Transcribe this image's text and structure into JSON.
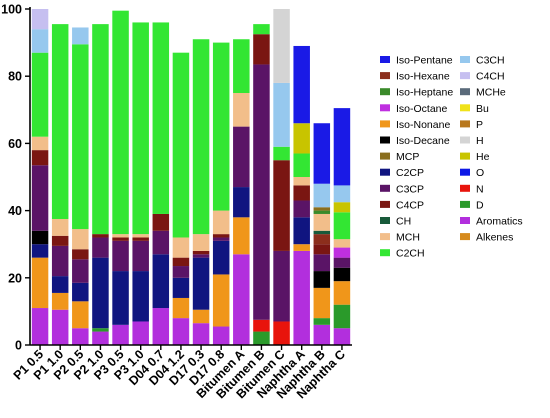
{
  "chart_data": {
    "type": "bar",
    "stacked": true,
    "ylim": [
      0,
      100
    ],
    "yticks": [
      0,
      20,
      40,
      60,
      80,
      100
    ],
    "categories": [
      "P1 0.5",
      "P1 1.0",
      "P2 0.5",
      "P2 1.0",
      "P3 0.5",
      "P3 1.0",
      "D04 0.7",
      "D04 1.2",
      "D17 0.3",
      "D17 0.8",
      "Bitumen A",
      "Bitumen B",
      "Bitumen C",
      "Naphtha A",
      "Naphtha B",
      "Naphtha C"
    ],
    "legend_position": "right",
    "series": [
      {
        "name": "Aromatics",
        "color": "#b22fdd",
        "values": [
          11,
          10.5,
          5,
          4,
          6,
          7,
          11,
          8,
          6.5,
          5.5,
          27,
          0,
          0,
          28,
          6,
          5
        ]
      },
      {
        "name": "D",
        "color": "#2a9a2a",
        "values": [
          0,
          0,
          0,
          1,
          0,
          0,
          0,
          0,
          0,
          0,
          0,
          4,
          0,
          0,
          2,
          7
        ]
      },
      {
        "name": "N",
        "color": "#e8140c",
        "values": [
          0,
          0,
          0,
          0,
          0,
          0,
          0,
          0,
          0,
          0,
          0,
          3.5,
          7,
          0,
          0,
          0
        ]
      },
      {
        "name": "O",
        "color": "#0d18e6",
        "values": [
          0,
          0,
          0,
          0,
          0,
          0,
          0,
          0,
          0,
          0,
          0,
          0,
          0,
          0,
          0,
          0
        ]
      },
      {
        "name": "Iso-Nonane",
        "color": "#f0961a",
        "values": [
          15,
          5,
          8,
          0,
          0,
          0,
          0,
          6,
          4,
          15.5,
          11,
          0,
          0,
          2,
          9,
          7
        ]
      },
      {
        "name": "C2CP",
        "color": "#101580",
        "values": [
          4,
          5,
          5.5,
          21,
          16,
          15,
          16,
          6,
          15.5,
          10,
          9,
          0,
          0,
          8,
          0,
          0
        ]
      },
      {
        "name": "Iso-Decane",
        "color": "#000000",
        "values": [
          4,
          0,
          0,
          0,
          0,
          0,
          0,
          0,
          0,
          0,
          0,
          0,
          0,
          0,
          5,
          4
        ]
      },
      {
        "name": "C3CP",
        "color": "#5a1466",
        "values": [
          19.5,
          9,
          7,
          6,
          9,
          9,
          7,
          3.5,
          1,
          1,
          18,
          76,
          21,
          5,
          5,
          3
        ]
      },
      {
        "name": "C4CP",
        "color": "#7a1612",
        "values": [
          4.5,
          3,
          3,
          1,
          1,
          1,
          5,
          2.5,
          1,
          1,
          0,
          9,
          27,
          4.5,
          3,
          0
        ]
      },
      {
        "name": "Iso-Hexane",
        "color": "#8c2e1c",
        "values": [
          0,
          0,
          0,
          0,
          0,
          0,
          0,
          0,
          0,
          0,
          0,
          0,
          0,
          0,
          3,
          0
        ]
      },
      {
        "name": "CH",
        "color": "#185a3a",
        "values": [
          0,
          0,
          0,
          0,
          0,
          0,
          0,
          0,
          0,
          0,
          0,
          0,
          0,
          0,
          1,
          0
        ]
      },
      {
        "name": "Iso-Octane",
        "color": "#bf2fe0",
        "values": [
          0,
          0,
          0,
          0,
          0,
          0,
          0,
          0,
          0,
          0,
          0,
          0,
          0,
          0,
          0,
          3
        ]
      },
      {
        "name": "MCH",
        "color": "#f2be8a",
        "values": [
          4,
          5,
          6,
          0,
          1,
          1,
          0,
          6,
          5,
          7,
          10,
          0,
          0,
          2.5,
          5,
          2.5
        ]
      },
      {
        "name": "Iso-Heptane",
        "color": "#3a8a2a",
        "values": [
          0,
          0,
          0,
          0,
          0,
          0,
          0,
          0,
          0,
          0,
          0,
          0,
          0,
          0,
          1,
          0
        ]
      },
      {
        "name": "MCP",
        "color": "#8a6e1e",
        "values": [
          0,
          0,
          0,
          0,
          0,
          0,
          0,
          0,
          0,
          0,
          0,
          0,
          0,
          0,
          1,
          0
        ]
      },
      {
        "name": "C2CH",
        "color": "#33e633",
        "values": [
          25,
          58,
          55,
          62.5,
          66.5,
          63,
          57,
          55,
          58,
          50,
          16,
          3,
          4,
          7,
          0,
          8
        ]
      },
      {
        "name": "He",
        "color": "#c8c400",
        "values": [
          0,
          0,
          0,
          0,
          0,
          0,
          0,
          0,
          0,
          0,
          0,
          0,
          0,
          9,
          0,
          3
        ]
      },
      {
        "name": "C3CH",
        "color": "#96c8ee",
        "values": [
          7,
          0,
          5,
          0,
          0,
          0,
          0,
          0,
          0,
          0,
          0,
          0,
          19,
          0,
          7,
          5
        ]
      },
      {
        "name": "C4CH",
        "color": "#c6bff0",
        "values": [
          6,
          0,
          0,
          0,
          0,
          0,
          0,
          0,
          0,
          0,
          0,
          0,
          0,
          0,
          0,
          0
        ]
      },
      {
        "name": "Iso-Pentane",
        "color": "#1a1ae6",
        "values": [
          0,
          0,
          0,
          0,
          0,
          0,
          0,
          0,
          0,
          0,
          0,
          0,
          0,
          23,
          18,
          23
        ]
      },
      {
        "name": "Alkenes",
        "color": "#d68a1c",
        "values": [
          0,
          0,
          0,
          0,
          0,
          0,
          0,
          0,
          0,
          0,
          0,
          0,
          0,
          0,
          0,
          0
        ]
      },
      {
        "name": "MCHe",
        "color": "#5a6a7a",
        "values": [
          0,
          0,
          0,
          0,
          0,
          0,
          0,
          0,
          0,
          0,
          0,
          0,
          0,
          0,
          0,
          0
        ]
      },
      {
        "name": "Bu",
        "color": "#f0e21a",
        "values": [
          0,
          0,
          0,
          0,
          0,
          0,
          0,
          0,
          0,
          0,
          0,
          0,
          0,
          0,
          0,
          0
        ]
      },
      {
        "name": "P",
        "color": "#b8781e",
        "values": [
          0,
          0,
          0,
          0,
          0,
          0,
          0,
          0,
          0,
          0,
          0,
          0,
          0,
          0,
          0,
          0
        ]
      },
      {
        "name": "H",
        "color": "#d4d4d4",
        "values": [
          0,
          0,
          0,
          0,
          0,
          0,
          0,
          0,
          0,
          0,
          0,
          0,
          22,
          0,
          0,
          0
        ]
      }
    ],
    "legend_columns": [
      [
        "Iso-Pentane",
        "Iso-Hexane",
        "Iso-Heptane",
        "Iso-Octane",
        "Iso-Nonane",
        "Iso-Decane",
        "MCP",
        "C2CP",
        "C3CP",
        "C4CP",
        "CH",
        "MCH",
        "C2CH"
      ],
      [
        "C3CH",
        "C4CH",
        "MCHe",
        "Bu",
        "P",
        "H",
        "He",
        "O",
        "N",
        "D",
        "Aromatics",
        "Alkenes"
      ]
    ]
  }
}
